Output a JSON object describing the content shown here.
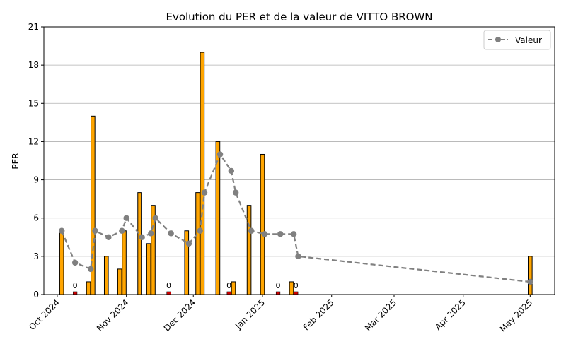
{
  "chart_data": {
    "type": "bar",
    "title": "Evolution du PER et de la valeur de VITTO BROWN",
    "xlabel": "",
    "ylabel": "PER",
    "ylim": [
      0,
      21
    ],
    "yticks": [
      0,
      3,
      6,
      9,
      12,
      15,
      18,
      21
    ],
    "xlim": [
      "2024-09-25",
      "2025-05-12"
    ],
    "xticks": [
      {
        "date": "2024-10-01",
        "label": "Oct 2024"
      },
      {
        "date": "2024-11-01",
        "label": "Nov 2024"
      },
      {
        "date": "2024-12-01",
        "label": "Dec 2024"
      },
      {
        "date": "2025-01-01",
        "label": "Jan 2025"
      },
      {
        "date": "2025-02-01",
        "label": "Feb 2025"
      },
      {
        "date": "2025-03-01",
        "label": "Mar 2025"
      },
      {
        "date": "2025-04-01",
        "label": "Apr 2025"
      },
      {
        "date": "2025-05-01",
        "label": "May 2025"
      }
    ],
    "grid": "y",
    "legend": {
      "placement": "top-right",
      "entries": [
        {
          "name": "Valeur",
          "color": "#808080"
        }
      ]
    },
    "bar_color": "#FFA500",
    "zero_bar_color": "#CC0000",
    "bar_edge_color": "#000000",
    "zero_label": "0",
    "per_bars": [
      {
        "date": "2024-10-03",
        "value": 5
      },
      {
        "date": "2024-10-09",
        "value": 0
      },
      {
        "date": "2024-10-15",
        "value": 1
      },
      {
        "date": "2024-10-17",
        "value": 14
      },
      {
        "date": "2024-10-23",
        "value": 3
      },
      {
        "date": "2024-10-29",
        "value": 2
      },
      {
        "date": "2024-10-31",
        "value": 5
      },
      {
        "date": "2024-11-07",
        "value": 8
      },
      {
        "date": "2024-11-11",
        "value": 4
      },
      {
        "date": "2024-11-13",
        "value": 7
      },
      {
        "date": "2024-11-20",
        "value": 0
      },
      {
        "date": "2024-11-28",
        "value": 5
      },
      {
        "date": "2024-12-03",
        "value": 8
      },
      {
        "date": "2024-12-05",
        "value": 19
      },
      {
        "date": "2024-12-12",
        "value": 12
      },
      {
        "date": "2024-12-17",
        "value": 0
      },
      {
        "date": "2024-12-19",
        "value": 1
      },
      {
        "date": "2024-12-26",
        "value": 7
      },
      {
        "date": "2025-01-01",
        "value": 11
      },
      {
        "date": "2025-01-08",
        "value": 0
      },
      {
        "date": "2025-01-14",
        "value": 1
      },
      {
        "date": "2025-01-16",
        "value": 0
      },
      {
        "date": "2025-05-01",
        "value": 3
      }
    ],
    "series": [
      {
        "name": "Valeur",
        "color": "#808080",
        "style": "dashed",
        "marker": "circle",
        "points": [
          {
            "date": "2024-10-03",
            "value": 5
          },
          {
            "date": "2024-10-09",
            "value": 2.5
          },
          {
            "date": "2024-10-16",
            "value": 2
          },
          {
            "date": "2024-10-18",
            "value": 5
          },
          {
            "date": "2024-10-24",
            "value": 4.5
          },
          {
            "date": "2024-10-30",
            "value": 5
          },
          {
            "date": "2024-11-01",
            "value": 6
          },
          {
            "date": "2024-11-08",
            "value": 4.5
          },
          {
            "date": "2024-11-12",
            "value": 4.8
          },
          {
            "date": "2024-11-14",
            "value": 6
          },
          {
            "date": "2024-11-21",
            "value": 4.8
          },
          {
            "date": "2024-11-29",
            "value": 4
          },
          {
            "date": "2024-12-04",
            "value": 5
          },
          {
            "date": "2024-12-06",
            "value": 8
          },
          {
            "date": "2024-12-13",
            "value": 11
          },
          {
            "date": "2024-12-18",
            "value": 9.7
          },
          {
            "date": "2024-12-20",
            "value": 8
          },
          {
            "date": "2024-12-27",
            "value": 5
          },
          {
            "date": "2025-01-02",
            "value": 4.75
          },
          {
            "date": "2025-01-09",
            "value": 4.75
          },
          {
            "date": "2025-01-15",
            "value": 4.75
          },
          {
            "date": "2025-01-17",
            "value": 3
          },
          {
            "date": "2025-05-01",
            "value": 1
          }
        ]
      }
    ]
  }
}
